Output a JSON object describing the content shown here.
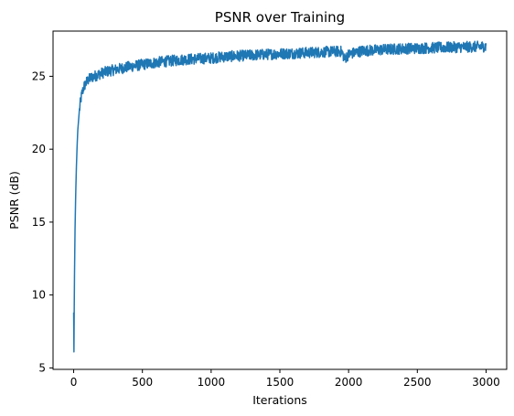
{
  "chart_data": {
    "type": "line",
    "title": "PSNR over Training",
    "xlabel": "Iterations",
    "ylabel": "PSNR (dB)",
    "xlim": [
      -150,
      3150
    ],
    "ylim": [
      4.9,
      28.1
    ],
    "grid": false,
    "x_ticks": [
      0,
      500,
      1000,
      1500,
      2000,
      2500,
      3000
    ],
    "y_ticks": [
      5,
      10,
      15,
      20,
      25
    ],
    "series": [
      {
        "color": "#1f77b4",
        "x": [
          0,
          2,
          5,
          10,
          15,
          20,
          25,
          30,
          40,
          50,
          60,
          75,
          100,
          125,
          150,
          200,
          250,
          300,
          400,
          500,
          600,
          700,
          800,
          900,
          1000,
          1100,
          1200,
          1300,
          1400,
          1500,
          1600,
          1700,
          1800,
          1900,
          1950,
          1970,
          2000,
          2100,
          2200,
          2300,
          2400,
          2500,
          2600,
          2700,
          2800,
          2900,
          3000
        ],
        "values": [
          8.8,
          6.1,
          10.5,
          14.5,
          17.0,
          18.8,
          20.2,
          21.3,
          22.5,
          23.3,
          23.8,
          24.3,
          24.7,
          24.9,
          25.0,
          25.2,
          25.35,
          25.45,
          25.65,
          25.8,
          25.95,
          26.05,
          26.15,
          26.2,
          26.25,
          26.35,
          26.4,
          26.45,
          26.5,
          26.55,
          26.58,
          26.62,
          26.66,
          26.7,
          26.7,
          26.2,
          26.5,
          26.75,
          26.8,
          26.85,
          26.9,
          26.92,
          26.95,
          26.98,
          27.0,
          27.02,
          27.05
        ],
        "noise_band": 0.38
      }
    ]
  }
}
